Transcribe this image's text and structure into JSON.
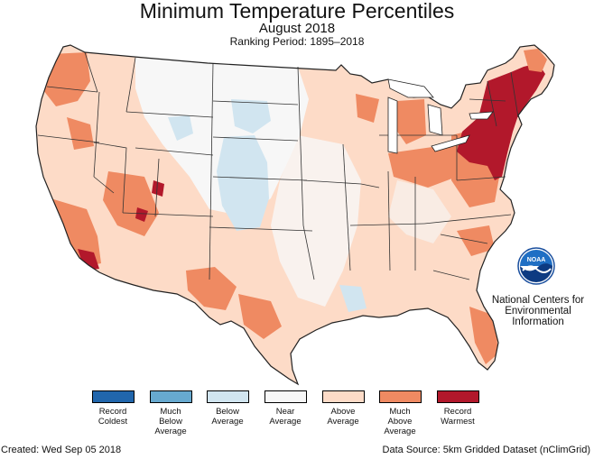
{
  "header": {
    "title": "Minimum Temperature Percentiles",
    "subtitle": "August 2018",
    "period": "Ranking Period: 1895–2018"
  },
  "org": {
    "line1": "National Centers for",
    "line2": "Environmental",
    "line3": "Information",
    "logo_text": "NOAA"
  },
  "legend": {
    "items": [
      {
        "label": "Record\nColdest",
        "color": "#2166ac"
      },
      {
        "label": "Much\nBelow\nAverage",
        "color": "#67a9cf"
      },
      {
        "label": "Below\nAverage",
        "color": "#d1e5f0"
      },
      {
        "label": "Near\nAverage",
        "color": "#f7f7f7"
      },
      {
        "label": "Above\nAverage",
        "color": "#fddbc7"
      },
      {
        "label": "Much\nAbove\nAverage",
        "color": "#ef8a62"
      },
      {
        "label": "Record\nWarmest",
        "color": "#b2182b"
      }
    ]
  },
  "footer": {
    "created": "Created: Wed Sep 05 2018",
    "source": "Data Source: 5km Gridded Dataset (nClimGrid)"
  }
}
